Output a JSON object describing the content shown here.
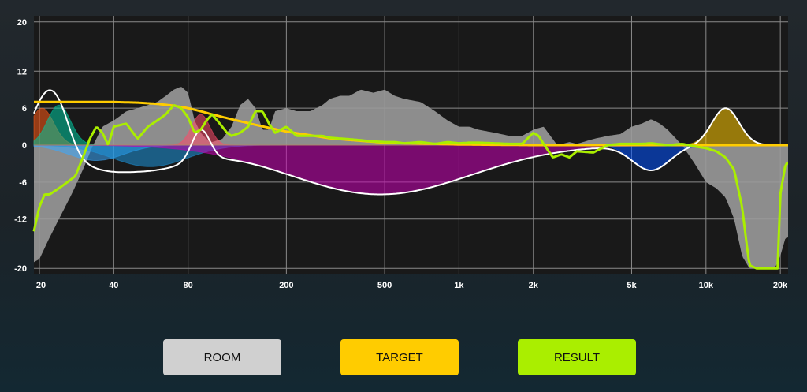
{
  "chart_data": {
    "type": "line",
    "x_scale": "log",
    "x_range": [
      19,
      21500
    ],
    "y_range": [
      -21,
      21
    ],
    "grid": true,
    "x_ticks": [
      {
        "value": 20,
        "label": "20"
      },
      {
        "value": 40,
        "label": "40"
      },
      {
        "value": 80,
        "label": "80"
      },
      {
        "value": 200,
        "label": "200"
      },
      {
        "value": 500,
        "label": "500"
      },
      {
        "value": 1000,
        "label": "1k"
      },
      {
        "value": 2000,
        "label": "2k"
      },
      {
        "value": 5000,
        "label": "5k"
      },
      {
        "value": 10000,
        "label": "10k"
      },
      {
        "value": 20000,
        "label": "20k"
      }
    ],
    "y_ticks": [
      {
        "value": 20,
        "label": "20"
      },
      {
        "value": 12,
        "label": "12"
      },
      {
        "value": 6,
        "label": "6"
      },
      {
        "value": 0,
        "label": "0"
      },
      {
        "value": -6,
        "label": "-6"
      },
      {
        "value": -12,
        "label": "-12"
      },
      {
        "value": -20,
        "label": "-20"
      }
    ],
    "series": [
      {
        "key": "room",
        "color": "#9a9a9a",
        "x": [
          19,
          20,
          22,
          24,
          27,
          30,
          33,
          36,
          40,
          45,
          50,
          55,
          60,
          65,
          70,
          75,
          80,
          85,
          90,
          95,
          100,
          110,
          120,
          130,
          140,
          150,
          160,
          170,
          180,
          200,
          220,
          250,
          280,
          300,
          330,
          360,
          400,
          450,
          500,
          550,
          600,
          700,
          800,
          900,
          1000,
          1100,
          1200,
          1400,
          1600,
          1800,
          2000,
          2200,
          2500,
          2800,
          3000,
          3500,
          4000,
          4500,
          5000,
          5500,
          6000,
          6500,
          7000,
          7500,
          8000,
          9000,
          10000,
          11000,
          12000,
          13000,
          14000,
          15000,
          16000,
          17000,
          18000,
          19000,
          20000,
          21000
        ],
        "y": [
          -19,
          -18.5,
          -15,
          -12,
          -8,
          -4,
          0,
          3,
          4,
          5.5,
          6,
          6.5,
          7,
          8,
          9,
          9.5,
          8.5,
          4,
          2,
          1,
          0.5,
          1,
          3,
          6.5,
          7.5,
          6,
          2.5,
          2.5,
          5.5,
          6,
          5.5,
          5.5,
          6.5,
          7.5,
          8,
          8,
          9,
          8.5,
          9,
          8,
          7.5,
          7,
          5.5,
          4,
          3,
          3,
          2.5,
          2,
          1.5,
          1.5,
          2.5,
          3,
          0,
          0.5,
          0.2,
          1,
          1.5,
          1.8,
          3,
          3.5,
          4.2,
          3.5,
          2.5,
          1.2,
          0,
          -3,
          -6,
          -7,
          -8.5,
          -12,
          -18,
          -20,
          -20,
          -20,
          -20,
          -20,
          -18,
          -15
        ]
      },
      {
        "key": "target",
        "color": "#ffcc00",
        "x": [
          19,
          20,
          25,
          30,
          40,
          50,
          60,
          70,
          80,
          90,
          100,
          120,
          150,
          180,
          200,
          250,
          300,
          400,
          500,
          600,
          800,
          1000,
          2000,
          5000,
          10000,
          20000,
          21000
        ],
        "y": [
          7,
          7,
          7,
          7,
          7,
          6.9,
          6.7,
          6.4,
          6,
          5.5,
          5,
          4.2,
          3.3,
          2.6,
          2.2,
          1.6,
          1.1,
          0.7,
          0.4,
          0.3,
          0.2,
          0.1,
          0,
          0,
          0,
          0,
          0
        ]
      },
      {
        "key": "result",
        "color": "#aaee00",
        "x": [
          19,
          19.5,
          20,
          21,
          22,
          24,
          26,
          28,
          30,
          32,
          34,
          36,
          38,
          40,
          45,
          50,
          55,
          60,
          65,
          70,
          75,
          80,
          85,
          90,
          95,
          100,
          105,
          110,
          115,
          120,
          130,
          140,
          150,
          160,
          170,
          180,
          200,
          220,
          250,
          280,
          300,
          350,
          400,
          450,
          500,
          550,
          600,
          700,
          800,
          900,
          1000,
          1100,
          1200,
          1400,
          1600,
          1800,
          2000,
          2100,
          2200,
          2400,
          2600,
          2800,
          3000,
          3500,
          4000,
          4500,
          5000,
          5500,
          6000,
          7000,
          8000,
          9000,
          10000,
          11000,
          12000,
          13000,
          14000,
          14500,
          15000,
          16000,
          18000,
          19500,
          20000,
          21000
        ],
        "y": [
          -14,
          -12,
          -10,
          -8,
          -8,
          -7,
          -6,
          -5,
          -2,
          1,
          3,
          2,
          0,
          3,
          3.5,
          1,
          3,
          4,
          5,
          6.5,
          6,
          4.5,
          2,
          2.5,
          4,
          5,
          4,
          3,
          2,
          1.5,
          2,
          3,
          5.5,
          5.5,
          3.5,
          2,
          3,
          1.5,
          1.5,
          1.5,
          1.2,
          1,
          0.8,
          0.6,
          0.5,
          0.5,
          0.3,
          0.5,
          0.2,
          0.5,
          0.3,
          0.4,
          0.4,
          0.3,
          0.2,
          0.2,
          2,
          1.5,
          0.2,
          -2,
          -1.5,
          -2,
          -1,
          -1.2,
          0,
          0.2,
          0.2,
          0.2,
          0.3,
          0,
          0.2,
          -0.2,
          -0.5,
          -1,
          -2,
          -4,
          -10,
          -15,
          -19.5,
          -20,
          -20,
          -20,
          -8,
          -3
        ]
      }
    ],
    "filters": [
      {
        "type": "peak",
        "freq": 20.5,
        "gain": 6,
        "q": 3.5,
        "color": "#ff5a14"
      },
      {
        "type": "peak",
        "freq": 24,
        "gain": 6.5,
        "q": 3.5,
        "color": "#00c8a0"
      },
      {
        "type": "peak",
        "freq": 34,
        "gain": -2.5,
        "q": 1.5,
        "color": "#3aaaff"
      },
      {
        "type": "peak",
        "freq": 56,
        "gain": -3.5,
        "q": 1.1,
        "color": "#1e96dc"
      },
      {
        "type": "peak",
        "freq": 90,
        "gain": 5,
        "q": 4.5,
        "color": "#ff4a6a"
      },
      {
        "type": "peak",
        "freq": 480,
        "gain": -8,
        "q": 0.45,
        "color": "#c800b4"
      },
      {
        "type": "peak",
        "freq": 6000,
        "gain": -4,
        "q": 2.2,
        "color": "#0050ff"
      },
      {
        "type": "peak",
        "freq": 12000,
        "gain": 6,
        "q": 3,
        "color": "#ffc800"
      }
    ]
  },
  "buttons": {
    "room": {
      "label": "ROOM",
      "color": "#d0d0d0"
    },
    "target": {
      "label": "TARGET",
      "color": "#ffcc00"
    },
    "result": {
      "label": "RESULT",
      "color": "#aaee00"
    }
  }
}
